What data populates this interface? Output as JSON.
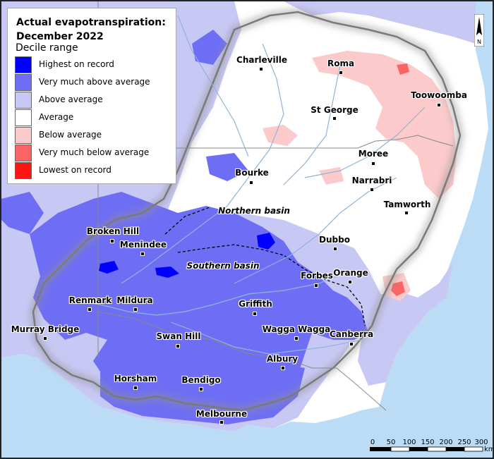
{
  "title_line1": "Actual evapotranspiration:",
  "title_line2": "December 2022",
  "legend": {
    "subtitle": "Decile range",
    "items": [
      {
        "label": "Highest on record",
        "color": "#0000ff"
      },
      {
        "label": "Very much above average",
        "color": "#6e6ef5"
      },
      {
        "label": "Above average",
        "color": "#c8c8f5"
      },
      {
        "label": "Average",
        "color": "#ffffff"
      },
      {
        "label": "Below average",
        "color": "#fccaca"
      },
      {
        "label": "Very much below average",
        "color": "#fa6464"
      },
      {
        "label": "Lowest on record",
        "color": "#ff1414"
      }
    ]
  },
  "basins": {
    "northern": "Northern basin",
    "southern": "Southern basin"
  },
  "places": [
    {
      "name": "Charleville"
    },
    {
      "name": "Roma"
    },
    {
      "name": "Toowoomba"
    },
    {
      "name": "St George"
    },
    {
      "name": "Moree"
    },
    {
      "name": "Bourke"
    },
    {
      "name": "Narrabri"
    },
    {
      "name": "Tamworth"
    },
    {
      "name": "Broken Hill"
    },
    {
      "name": "Menindee"
    },
    {
      "name": "Dubbo"
    },
    {
      "name": "Forbes"
    },
    {
      "name": "Orange"
    },
    {
      "name": "Renmark"
    },
    {
      "name": "Mildura"
    },
    {
      "name": "Griffith"
    },
    {
      "name": "Murray Bridge"
    },
    {
      "name": "Swan Hill"
    },
    {
      "name": "Wagga Wagga"
    },
    {
      "name": "Canberra"
    },
    {
      "name": "Albury"
    },
    {
      "name": "Horsham"
    },
    {
      "name": "Bendigo"
    },
    {
      "name": "Melbourne"
    }
  ],
  "scale_bar": {
    "ticks": [
      "0",
      "50",
      "100",
      "150",
      "200",
      "250",
      "300"
    ],
    "unit": "km"
  },
  "north_label": "N",
  "colors": {
    "sea": "#bcdcf5",
    "river": "#8fb4d8",
    "border": "#888888"
  }
}
